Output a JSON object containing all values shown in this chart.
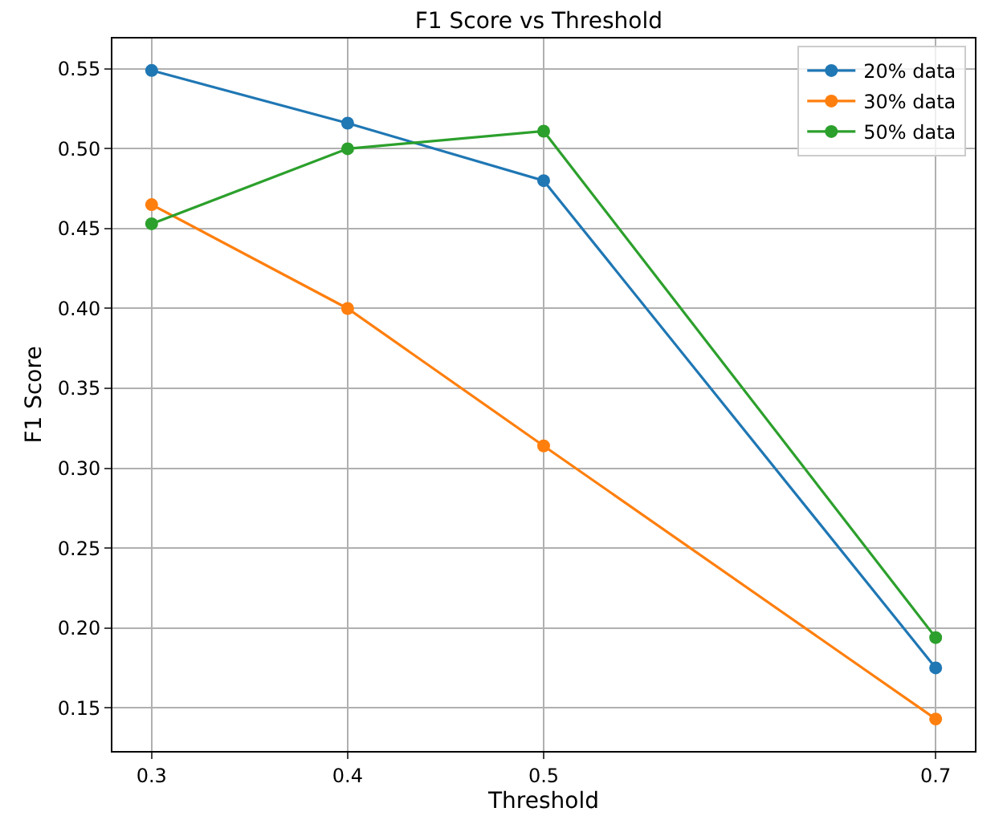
{
  "chart_data": {
    "type": "line",
    "title": "F1 Score vs Threshold",
    "xlabel": "Threshold",
    "ylabel": "F1 Score",
    "x": [
      0.3,
      0.4,
      0.5,
      0.7
    ],
    "series": [
      {
        "name": "20% data",
        "color": "#1f77b4",
        "values": [
          0.549,
          0.516,
          0.48,
          0.175
        ]
      },
      {
        "name": "30% data",
        "color": "#ff7f0e",
        "values": [
          0.465,
          0.4,
          0.314,
          0.143
        ]
      },
      {
        "name": "50% data",
        "color": "#2ca02c",
        "values": [
          0.453,
          0.5,
          0.511,
          0.194
        ]
      }
    ],
    "xlim": [
      0.28,
      0.72
    ],
    "xticks": [
      0.3,
      0.4,
      0.5,
      0.7
    ],
    "ylim": [
      0.123,
      0.569
    ],
    "yticks": [
      {
        "value": 0.15,
        "label": "0.15"
      },
      {
        "value": 0.2,
        "label": "0.20"
      },
      {
        "value": 0.25,
        "label": "0.25"
      },
      {
        "value": 0.3,
        "label": "0.30"
      },
      {
        "value": 0.35,
        "label": "0.35"
      },
      {
        "value": 0.4,
        "label": "0.40"
      },
      {
        "value": 0.45,
        "label": "0.45"
      },
      {
        "value": 0.5,
        "label": "0.50"
      },
      {
        "value": 0.55,
        "label": "0.55"
      }
    ],
    "grid": true,
    "legend": "top right",
    "marker": "circle",
    "line_style": "solid"
  }
}
